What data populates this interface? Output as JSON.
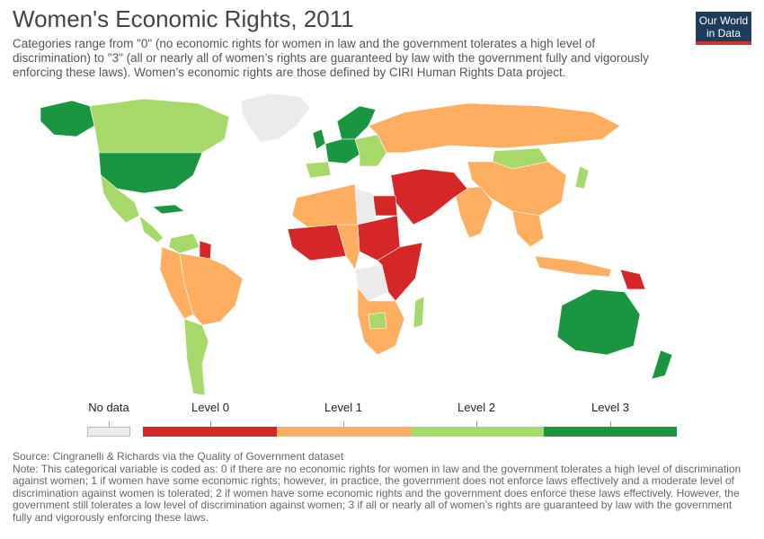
{
  "header": {
    "title": "Women's Economic Rights, 2011",
    "subtitle": "Categories range from \"0\" (no economic rights for women in law and the government tolerates a high level of discrimination) to \"3\" (all or nearly all of women’s rights are guaranteed by law with the government fully and vigorously enforcing these laws). Women’s economic rights are those defined by CIRI Human Rights Data project."
  },
  "logo": {
    "line1": "Our World",
    "line2": "in Data",
    "bg": "#1d3c5e",
    "accent": "#c33"
  },
  "legend": {
    "items": [
      {
        "label": "No data",
        "color": "#ebebeb"
      },
      {
        "label": "Level 0",
        "color": "#d62728"
      },
      {
        "label": "Level 1",
        "color": "#fdae61"
      },
      {
        "label": "Level 2",
        "color": "#a6d96a"
      },
      {
        "label": "Level 3",
        "color": "#1a9641"
      }
    ]
  },
  "map": {
    "ocean": "#ffffff",
    "regions": [
      {
        "name": "Greenland",
        "level": "none"
      },
      {
        "name": "Canada",
        "level": 2
      },
      {
        "name": "Alaska",
        "level": 3
      },
      {
        "name": "United States",
        "level": 3
      },
      {
        "name": "Mexico",
        "level": 2
      },
      {
        "name": "Central America",
        "level": 2
      },
      {
        "name": "Cuba",
        "level": 3
      },
      {
        "name": "Venezuela",
        "level": 2
      },
      {
        "name": "Guyana",
        "level": 0
      },
      {
        "name": "Brazil",
        "level": 1
      },
      {
        "name": "Andean countries",
        "level": 1
      },
      {
        "name": "Southern Cone",
        "level": 2
      },
      {
        "name": "United Kingdom",
        "level": 3
      },
      {
        "name": "Scandinavia",
        "level": 3
      },
      {
        "name": "Western Europe",
        "level": 3
      },
      {
        "name": "Iberia",
        "level": 2
      },
      {
        "name": "Eastern Europe",
        "level": 2
      },
      {
        "name": "Russia",
        "level": 1
      },
      {
        "name": "Mongolia",
        "level": 2
      },
      {
        "name": "China",
        "level": 1
      },
      {
        "name": "Japan",
        "level": 2
      },
      {
        "name": "India",
        "level": 1
      },
      {
        "name": "Southeast Asia",
        "level": 1
      },
      {
        "name": "Middle East",
        "level": 0
      },
      {
        "name": "Egypt",
        "level": 0
      },
      {
        "name": "North Africa",
        "level": 1
      },
      {
        "name": "Libya",
        "level": "none"
      },
      {
        "name": "Sudan",
        "level": 0
      },
      {
        "name": "West Africa",
        "level": 0
      },
      {
        "name": "Central Africa",
        "level": 1
      },
      {
        "name": "DR Congo",
        "level": "none"
      },
      {
        "name": "East Africa",
        "level": 0
      },
      {
        "name": "Southern Africa",
        "level": 1
      },
      {
        "name": "Botswana",
        "level": 2
      },
      {
        "name": "Madagascar",
        "level": 2
      },
      {
        "name": "Papua New Guinea",
        "level": 0
      },
      {
        "name": "Indonesia",
        "level": 1
      },
      {
        "name": "Australia",
        "level": 3
      },
      {
        "name": "New Zealand",
        "level": 3
      }
    ]
  },
  "footer": {
    "source": "Source: Cingranelli & Richards via the Quality of Government dataset",
    "note": "Note: This categorical variable is coded as: 0 if there are no economic rights for women in law and the government tolerates a high level of discrimination against women; 1 if women have some economic rights; however, in practice, the government does not enforce laws effectively and a moderate level of discrimination against women is tolerated; 2 if women have some economic rights and the government does enforce these laws effectively. However, the government still tolerates a low level of discrimination against women; 3 if all or nearly all of women’s rights are guaranteed by law with the government fully and vigorously enforcing these laws."
  }
}
